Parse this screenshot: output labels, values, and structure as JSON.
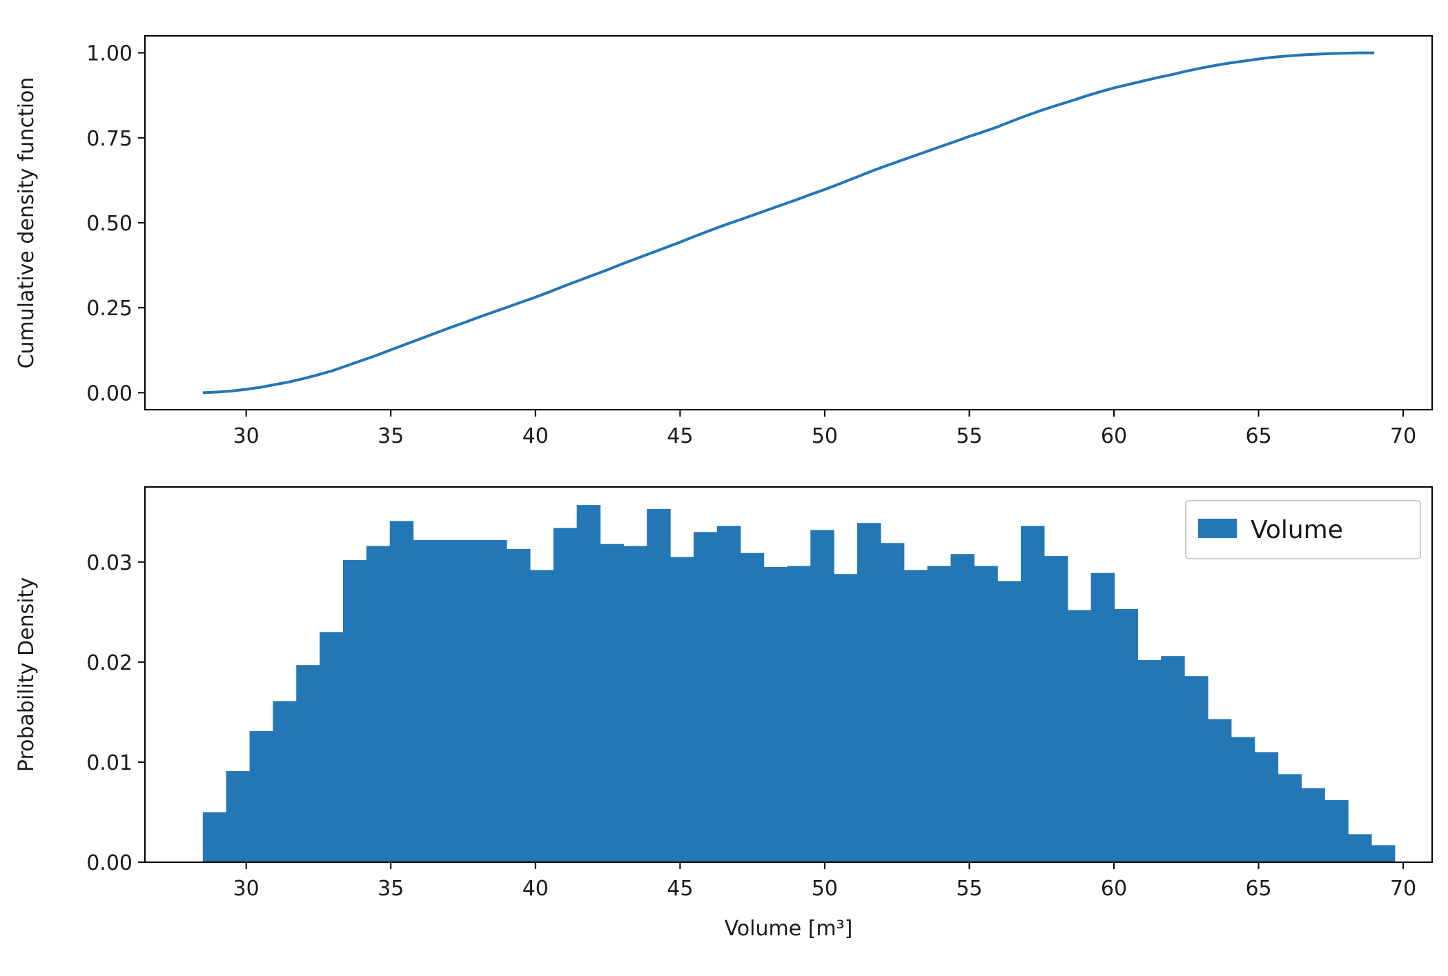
{
  "colors": {
    "series": "#2377b4",
    "axis": "#000000",
    "background": "#ffffff",
    "legend_border": "#cccccc"
  },
  "chart_data": [
    {
      "type": "line",
      "title": "",
      "xlabel": "",
      "ylabel": "Cumulative density function",
      "xlim": [
        26.5,
        71.0
      ],
      "ylim": [
        -0.05,
        1.05
      ],
      "xticks": [
        30,
        35,
        40,
        45,
        50,
        55,
        60,
        65,
        70
      ],
      "yticks": [
        0.0,
        0.25,
        0.5,
        0.75,
        1.0
      ],
      "xtick_labels": [
        "30",
        "35",
        "40",
        "45",
        "50",
        "55",
        "60",
        "65",
        "70"
      ],
      "ytick_labels": [
        "0.00",
        "0.25",
        "0.50",
        "0.75",
        "1.00"
      ],
      "grid": false,
      "series": [
        {
          "x": [
            28.5,
            29.0,
            29.5,
            30.0,
            30.5,
            31.0,
            31.5,
            32.0,
            32.5,
            33.0,
            33.5,
            34.0,
            34.5,
            35.0,
            35.5,
            36.0,
            36.5,
            37.0,
            37.5,
            38.0,
            38.5,
            39.0,
            39.5,
            40.0,
            40.5,
            41.0,
            41.5,
            42.0,
            42.5,
            43.0,
            43.5,
            44.0,
            44.5,
            45.0,
            45.5,
            46.0,
            46.5,
            47.0,
            47.5,
            48.0,
            48.5,
            49.0,
            49.5,
            50.0,
            50.5,
            51.0,
            51.5,
            52.0,
            52.5,
            53.0,
            53.5,
            54.0,
            54.5,
            55.0,
            55.5,
            56.0,
            56.5,
            57.0,
            57.5,
            58.0,
            58.5,
            59.0,
            59.5,
            60.0,
            60.5,
            61.0,
            61.5,
            62.0,
            62.5,
            63.0,
            63.5,
            64.0,
            64.5,
            65.0,
            65.5,
            66.0,
            66.5,
            67.0,
            67.5,
            68.0,
            68.5,
            69.0
          ],
          "y": [
            0.0,
            0.002,
            0.005,
            0.01,
            0.016,
            0.024,
            0.032,
            0.042,
            0.053,
            0.065,
            0.08,
            0.095,
            0.11,
            0.126,
            0.142,
            0.158,
            0.174,
            0.19,
            0.205,
            0.221,
            0.236,
            0.251,
            0.266,
            0.281,
            0.297,
            0.314,
            0.33,
            0.346,
            0.362,
            0.379,
            0.395,
            0.411,
            0.427,
            0.443,
            0.46,
            0.476,
            0.492,
            0.507,
            0.522,
            0.537,
            0.552,
            0.567,
            0.583,
            0.598,
            0.614,
            0.631,
            0.648,
            0.664,
            0.679,
            0.694,
            0.709,
            0.724,
            0.739,
            0.754,
            0.768,
            0.783,
            0.8,
            0.816,
            0.831,
            0.845,
            0.858,
            0.872,
            0.885,
            0.897,
            0.907,
            0.917,
            0.927,
            0.936,
            0.946,
            0.955,
            0.963,
            0.97,
            0.976,
            0.982,
            0.987,
            0.991,
            0.994,
            0.996,
            0.998,
            0.999,
            1.0,
            1.0
          ]
        }
      ]
    },
    {
      "type": "bar",
      "title": "",
      "xlabel": "Volume [m³]",
      "ylabel": "Probability Density",
      "xlim": [
        26.5,
        71.0
      ],
      "ylim": [
        0.0,
        0.0375
      ],
      "xticks": [
        30,
        35,
        40,
        45,
        50,
        55,
        60,
        65,
        70
      ],
      "yticks": [
        0.0,
        0.01,
        0.02,
        0.03
      ],
      "xtick_labels": [
        "30",
        "35",
        "40",
        "45",
        "50",
        "55",
        "60",
        "65",
        "70"
      ],
      "ytick_labels": [
        "0.00",
        "0.01",
        "0.02",
        "0.03"
      ],
      "grid": false,
      "legend": {
        "position": "top-right",
        "entries": [
          "Volume"
        ]
      },
      "bin_start": 28.5,
      "bin_width": 0.808,
      "series": [
        {
          "name": "Volume",
          "values": [
            0.005,
            0.0091,
            0.0131,
            0.0161,
            0.0197,
            0.023,
            0.0302,
            0.0316,
            0.0341,
            0.0322,
            0.0322,
            0.0322,
            0.0322,
            0.0313,
            0.0292,
            0.0334,
            0.0357,
            0.0318,
            0.0316,
            0.0353,
            0.0305,
            0.033,
            0.0336,
            0.0309,
            0.0295,
            0.0296,
            0.0332,
            0.0288,
            0.0339,
            0.0319,
            0.0292,
            0.0296,
            0.0308,
            0.0296,
            0.0281,
            0.0336,
            0.0306,
            0.0252,
            0.0289,
            0.0253,
            0.0202,
            0.0206,
            0.0186,
            0.0143,
            0.0125,
            0.011,
            0.0088,
            0.0074,
            0.0062,
            0.0028,
            0.0017
          ]
        }
      ]
    }
  ]
}
